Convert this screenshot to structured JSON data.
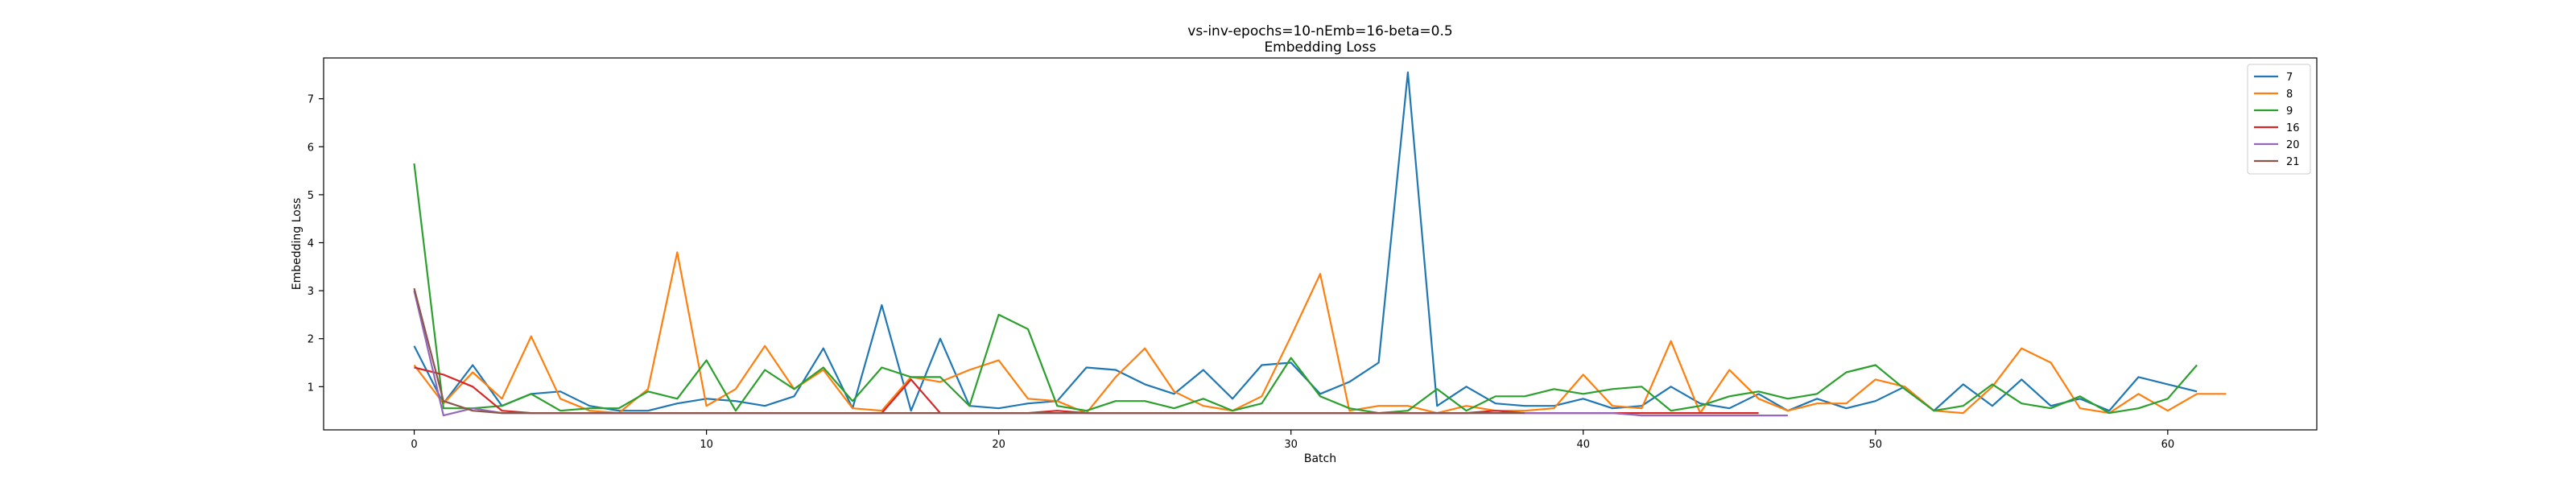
{
  "chart_data": {
    "type": "line",
    "title": "vs-inv-epochs=10-nEmb=16-beta=0.5",
    "subtitle": "Embedding Loss",
    "xlabel": "Batch",
    "ylabel": "Embedding Loss",
    "xlim": [
      -3.1,
      65.1
    ],
    "ylim": [
      0.1,
      7.85
    ],
    "xticks": [
      0,
      10,
      20,
      30,
      40,
      50,
      60
    ],
    "yticks": [
      1,
      2,
      3,
      4,
      5,
      6,
      7
    ],
    "grid": false,
    "legend_position": "top-right",
    "series": [
      {
        "name": "7",
        "color": "#1f77b4",
        "values": [
          1.85,
          0.65,
          1.45,
          0.6,
          0.85,
          0.9,
          0.6,
          0.5,
          0.5,
          0.65,
          0.75,
          0.7,
          0.6,
          0.8,
          1.8,
          0.55,
          2.7,
          0.5,
          2.0,
          0.6,
          0.55,
          0.65,
          0.7,
          1.4,
          1.35,
          1.05,
          0.85,
          1.35,
          0.75,
          1.45,
          1.5,
          0.85,
          1.1,
          1.5,
          7.55,
          0.6,
          1.0,
          0.65,
          0.6,
          0.6,
          0.75,
          0.55,
          0.6,
          1.0,
          0.65,
          0.55,
          0.85,
          0.5,
          0.75,
          0.55,
          0.7,
          1.0,
          0.5,
          1.05,
          0.6,
          1.15,
          0.6,
          0.75,
          0.5,
          1.2,
          1.05,
          0.9
        ]
      },
      {
        "name": "8",
        "color": "#ff7f0e",
        "values": [
          1.45,
          0.65,
          1.3,
          0.75,
          2.05,
          0.75,
          0.5,
          0.45,
          0.95,
          3.8,
          0.6,
          0.95,
          1.85,
          0.95,
          1.35,
          0.55,
          0.5,
          1.2,
          1.1,
          1.35,
          1.55,
          0.75,
          0.7,
          0.45,
          1.2,
          1.8,
          0.9,
          0.6,
          0.5,
          0.8,
          2.05,
          3.35,
          0.5,
          0.6,
          0.6,
          0.45,
          0.6,
          0.5,
          0.5,
          0.55,
          1.25,
          0.6,
          0.55,
          1.95,
          0.45,
          1.35,
          0.75,
          0.5,
          0.65,
          0.65,
          1.15,
          1.0,
          0.5,
          0.45,
          1.0,
          1.8,
          1.5,
          0.55,
          0.45,
          0.85,
          0.5,
          0.85,
          0.85
        ]
      },
      {
        "name": "9",
        "color": "#2ca02c",
        "values": [
          5.65,
          0.55,
          0.55,
          0.6,
          0.85,
          0.5,
          0.55,
          0.55,
          0.9,
          0.75,
          1.55,
          0.5,
          1.35,
          0.95,
          1.4,
          0.7,
          1.4,
          1.2,
          1.2,
          0.6,
          2.5,
          2.2,
          0.6,
          0.5,
          0.7,
          0.7,
          0.55,
          0.75,
          0.5,
          0.65,
          1.6,
          0.8,
          0.55,
          0.45,
          0.5,
          0.95,
          0.5,
          0.8,
          0.8,
          0.95,
          0.85,
          0.95,
          1.0,
          0.5,
          0.6,
          0.8,
          0.9,
          0.75,
          0.85,
          1.3,
          1.45,
          0.95,
          0.5,
          0.6,
          1.05,
          0.65,
          0.55,
          0.8,
          0.45,
          0.55,
          0.75,
          1.45
        ]
      },
      {
        "name": "16",
        "color": "#d62728",
        "values": [
          1.4,
          1.25,
          1.0,
          0.5,
          0.45,
          0.45,
          0.45,
          0.45,
          0.45,
          0.45,
          0.45,
          0.45,
          0.45,
          0.45,
          0.45,
          0.45,
          0.45,
          1.15,
          0.45,
          0.45,
          0.45,
          0.45,
          0.5,
          0.45,
          0.45,
          0.45,
          0.45,
          0.45,
          0.45,
          0.45,
          0.45,
          0.45,
          0.45,
          0.45,
          0.45,
          0.45,
          0.45,
          0.5,
          0.45,
          0.45,
          0.45,
          0.45,
          0.45,
          0.45,
          0.45,
          0.45,
          0.45
        ]
      },
      {
        "name": "20",
        "color": "#9467bd",
        "values": [
          3.0,
          0.4,
          0.55,
          0.45,
          0.45,
          0.45,
          0.45,
          0.45,
          0.45,
          0.45,
          0.45,
          0.45,
          0.45,
          0.45,
          0.45,
          0.45,
          0.45,
          0.45,
          0.45,
          0.45,
          0.45,
          0.45,
          0.45,
          0.45,
          0.45,
          0.45,
          0.45,
          0.45,
          0.45,
          0.45,
          0.45,
          0.45,
          0.45,
          0.45,
          0.45,
          0.45,
          0.45,
          0.45,
          0.45,
          0.45,
          0.45,
          0.45,
          0.4,
          0.4,
          0.4,
          0.4,
          0.4,
          0.4
        ]
      },
      {
        "name": "21",
        "color": "#8c564b",
        "values": [
          3.05,
          0.7,
          0.5,
          0.45,
          0.45,
          0.45,
          0.45,
          0.45,
          0.45,
          0.45,
          0.45,
          0.45,
          0.45,
          0.45,
          0.45,
          0.45,
          0.45,
          0.45,
          0.45,
          0.45,
          0.45,
          0.45,
          0.45,
          0.45,
          0.45,
          0.45,
          0.45,
          0.45,
          0.45,
          0.45,
          0.45,
          0.45,
          0.45,
          0.45,
          0.45,
          0.45,
          0.45,
          0.45,
          0.45
        ]
      }
    ]
  }
}
